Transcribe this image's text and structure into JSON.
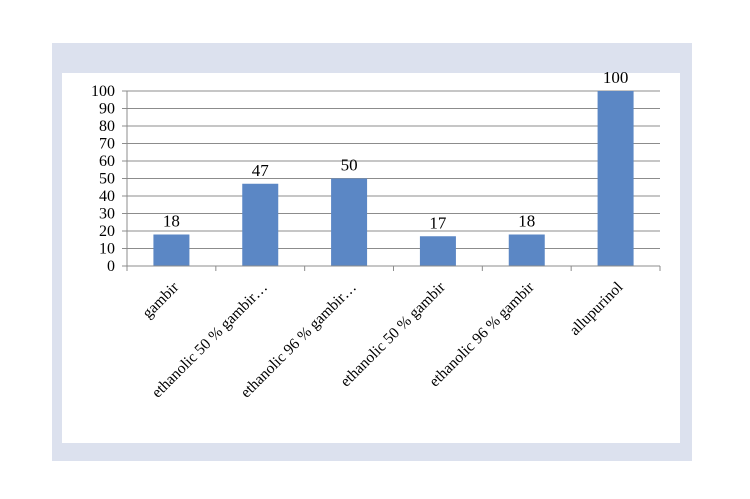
{
  "chart_data": {
    "type": "bar",
    "categories": [
      "gambir",
      "ethanolic 50 % gambir…",
      "ethanolic 96 % gambir…",
      "ethanolic 50 % gambir",
      "ethanolic 96 % gambir",
      "allupurinol"
    ],
    "values": [
      18,
      47,
      50,
      17,
      18,
      100
    ],
    "data_labels": [
      "18",
      "47",
      "50",
      "17",
      "18",
      "100"
    ],
    "title": "",
    "xlabel": "",
    "ylabel": "",
    "ylim": [
      0,
      100
    ],
    "yticks": [
      0,
      10,
      20,
      30,
      40,
      50,
      60,
      70,
      80,
      90,
      100
    ],
    "grid": true,
    "legend": "none",
    "bar_color": "#5b87c5"
  }
}
